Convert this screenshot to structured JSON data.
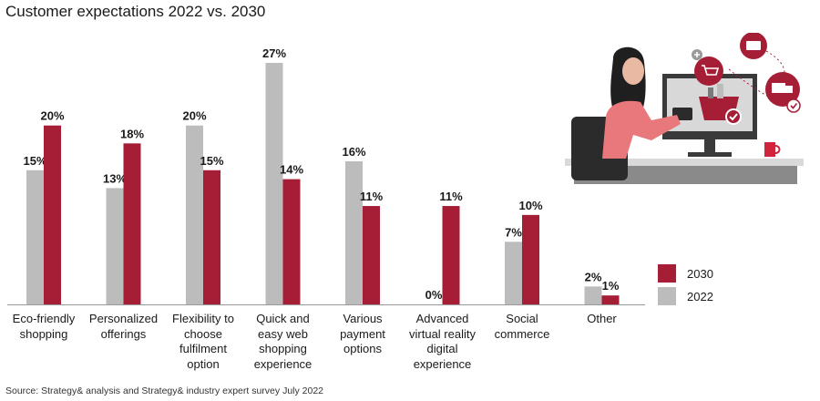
{
  "chart_data": {
    "type": "bar",
    "title": "Customer expectations 2022 vs. 2030",
    "categories": [
      [
        "Eco-friendly",
        "shopping"
      ],
      [
        "Personalized",
        "offerings"
      ],
      [
        "Flexibility to",
        "choose",
        "fulfilment",
        "option"
      ],
      [
        "Quick and",
        "easy web",
        "shopping",
        "experience"
      ],
      [
        "Various",
        "payment",
        "options"
      ],
      [
        "Advanced",
        "virtual reality",
        "digital",
        "experience"
      ],
      [
        "Social",
        "commerce"
      ],
      [
        "Other"
      ]
    ],
    "series": [
      {
        "name": "2022",
        "color": "#bcbcbc",
        "values": [
          15,
          13,
          20,
          27,
          16,
          0,
          7,
          2
        ]
      },
      {
        "name": "2030",
        "color": "#a51e36",
        "values": [
          20,
          18,
          15,
          14,
          11,
          11,
          10,
          1
        ]
      }
    ],
    "value_suffix": "%",
    "ylim": [
      0,
      27
    ],
    "grid": false,
    "legend": [
      "2030",
      "2022"
    ],
    "legend_position": "right"
  },
  "source": "Source: Strategy& analysis and Strategy& industry expert survey July 2022"
}
